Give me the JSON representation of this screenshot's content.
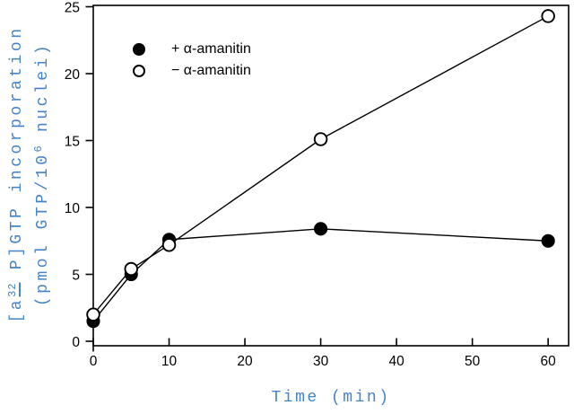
{
  "figure": {
    "x_axis_label": "Time (min)",
    "y_axis_label": {
      "line1_pre": "[a",
      "line1_sup": "32",
      "line1_post": " P]GTP incorporation",
      "line2_pre": "(pmol GTP/10",
      "line2_sup": "6",
      "line2_post": " nuclei)"
    },
    "accent_color": "#4484c8",
    "line_color": "#000000"
  },
  "legend": {
    "items": [
      {
        "label": "+ α-amanitin",
        "marker": "filled"
      },
      {
        "label": "− α-amanitin",
        "marker": "open"
      }
    ]
  },
  "chart_data": {
    "type": "line",
    "title": "",
    "xlabel": "Time (min)",
    "ylabel": "[a32 P]GTP incorporation (pmol GTP/10^6 nuclei)",
    "x": [
      0,
      5,
      10,
      30,
      60
    ],
    "series": [
      {
        "name": "+ α-amanitin",
        "marker": "filled",
        "values": [
          1.5,
          5.0,
          7.6,
          8.4,
          7.5
        ]
      },
      {
        "name": "− α-amanitin",
        "marker": "open",
        "values": [
          2.0,
          5.4,
          7.2,
          15.1,
          24.3
        ]
      }
    ],
    "xlim": [
      0,
      62.7
    ],
    "ylim": [
      0,
      25
    ],
    "x_ticks": [
      0,
      10,
      20,
      30,
      40,
      50,
      60
    ],
    "y_ticks": [
      0,
      5,
      10,
      15,
      20,
      25
    ],
    "grid": false,
    "legend_position": "upper-left-inside"
  }
}
